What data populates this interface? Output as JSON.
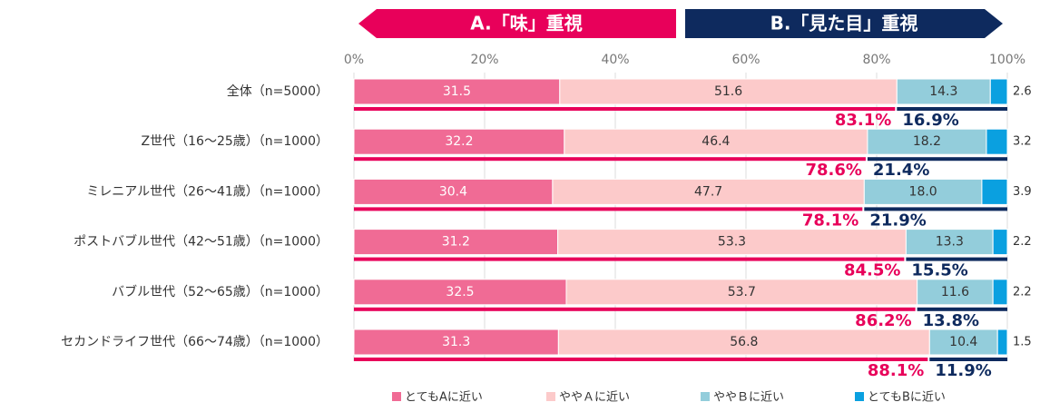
{
  "chart_data": {
    "type": "stacked_bar_horizontal",
    "header_a": "A.「味」重視",
    "header_b": "B.「見た目」重視",
    "categories": [
      "全体（n=5000）",
      "Z世代（16～25歳）（n=1000）",
      "ミレニアル世代（26～41歳）（n=1000）",
      "ポストバブル世代（42～51歳）（n=1000）",
      "バブル世代（52～65歳）（n=1000）",
      "セカンドライフ世代（66～74歳）（n=1000）"
    ],
    "series": [
      {
        "name": "とてもAに近い",
        "color": "#f06b95",
        "values": [
          31.5,
          32.2,
          30.4,
          31.2,
          32.5,
          31.3
        ]
      },
      {
        "name": "ややＡに近い",
        "color": "#fccaca",
        "values": [
          51.6,
          46.4,
          47.7,
          53.3,
          53.7,
          56.8
        ]
      },
      {
        "name": "ややＢに近い",
        "color": "#93cddb",
        "values": [
          14.3,
          18.2,
          18.0,
          13.3,
          11.6,
          10.4
        ],
        "value_labels": [
          "14.3",
          "18.2",
          "18.0",
          "13.3",
          "11.6",
          "10.4"
        ]
      },
      {
        "name": "とてもBに近い",
        "color": "#0aa0e0",
        "values": [
          2.6,
          3.2,
          3.9,
          2.2,
          2.2,
          1.5
        ]
      }
    ],
    "total_a": {
      "color": "#e8005a",
      "values": [
        83.1,
        78.6,
        78.1,
        84.5,
        86.2,
        88.1
      ],
      "value_labels": [
        "83.1%",
        "78.6%",
        "78.1%",
        "84.5%",
        "86.2%",
        "88.1%"
      ]
    },
    "total_b": {
      "color": "#0e2a5e",
      "values": [
        16.9,
        21.4,
        21.9,
        15.5,
        13.8,
        11.9
      ],
      "value_labels": [
        "16.9%",
        "21.4%",
        "21.9%",
        "15.5%",
        "13.8%",
        "11.9%"
      ]
    },
    "xlim": [
      0,
      100
    ],
    "xticks": [
      {
        "value": 0,
        "label": "0%"
      },
      {
        "value": 20,
        "label": "20%"
      },
      {
        "value": 40,
        "label": "40%"
      },
      {
        "value": 60,
        "label": "60%"
      },
      {
        "value": 80,
        "label": "80%"
      },
      {
        "value": 100,
        "label": "100%"
      }
    ],
    "grid": true
  }
}
